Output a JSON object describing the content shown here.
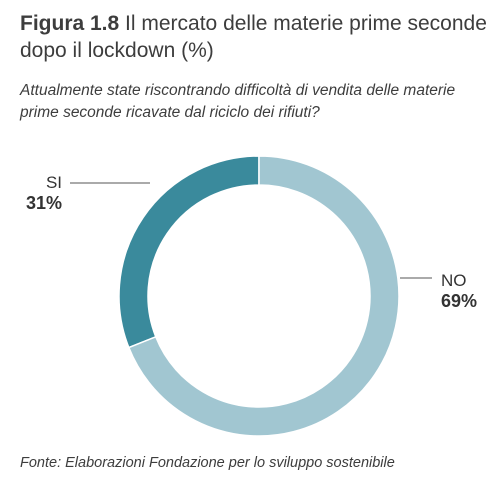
{
  "header": {
    "figure_label": "Figura 1.8",
    "title": "Il mercato delle materie prime seconde dopo il lockdown (%)"
  },
  "question": "Attualmente state riscontrando difficoltà di vendita delle materie prime seconde ricavate dal riciclo dei rifiuti?",
  "chart_data": {
    "type": "pie",
    "style": "donut",
    "categories": [
      "SI",
      "NO"
    ],
    "values": [
      31,
      69
    ],
    "value_labels": [
      "31%",
      "69%"
    ],
    "colors": [
      "#3a8a9c",
      "#a1c6d1"
    ]
  },
  "source": "Fonte: Elaborazioni Fondazione per lo sviluppo sostenibile"
}
